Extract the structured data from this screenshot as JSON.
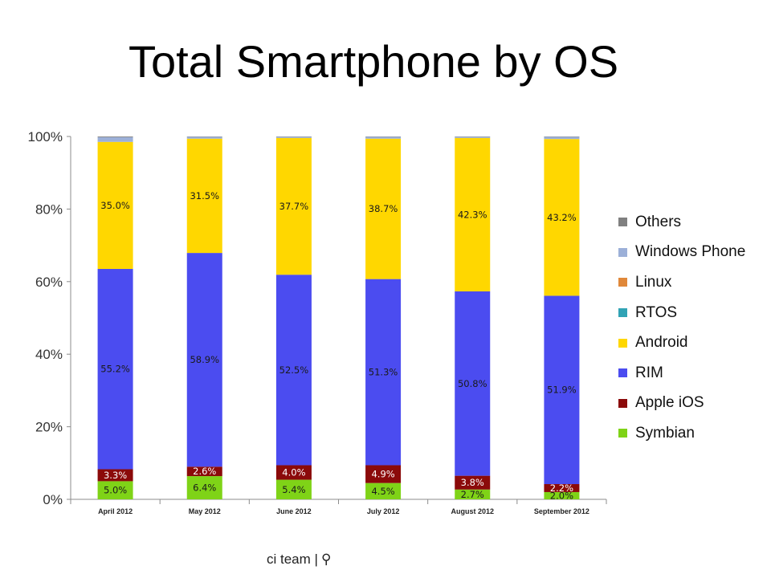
{
  "chart_data": {
    "type": "bar",
    "stacked": true,
    "title": "Total Smartphone by OS",
    "categories": [
      "April 2012",
      "May 2012",
      "June 2012",
      "July 2012",
      "August 2012",
      "September 2012"
    ],
    "ylim": [
      0,
      100
    ],
    "yticks": [
      "0%",
      "20%",
      "40%",
      "60%",
      "80%",
      "100%"
    ],
    "legend_position": "right",
    "series": [
      {
        "name": "Symbian",
        "color": "#7fd317",
        "values": [
          5.0,
          6.4,
          5.4,
          4.5,
          2.7,
          2.0
        ],
        "labels": [
          "5.0%",
          "6.4%",
          "5.4%",
          "4.5%",
          "2.7%",
          "2.0%"
        ],
        "label_color": "#1a1a1a"
      },
      {
        "name": "Apple iOS",
        "color": "#8b0a0a",
        "values": [
          3.3,
          2.6,
          4.0,
          4.9,
          3.8,
          2.2
        ],
        "labels": [
          "3.3%",
          "2.6%",
          "4.0%",
          "4.9%",
          "3.8%",
          "2.2%"
        ],
        "label_color": "#ffffff"
      },
      {
        "name": "RIM",
        "color": "#4b4cf0",
        "values": [
          55.2,
          58.9,
          52.5,
          51.3,
          50.8,
          51.9
        ],
        "labels": [
          "55.2%",
          "58.9%",
          "52.5%",
          "51.3%",
          "50.8%",
          "51.9%"
        ],
        "label_color": "#1a1a1a"
      },
      {
        "name": "Android",
        "color": "#ffd700",
        "values": [
          35.0,
          31.5,
          37.7,
          38.7,
          42.3,
          43.2
        ],
        "labels": [
          "35.0%",
          "31.5%",
          "37.7%",
          "38.7%",
          "42.3%",
          "43.2%"
        ],
        "label_color": "#1a1a1a"
      },
      {
        "name": "RTOS",
        "color": "#31a3b5",
        "values": [
          0.0,
          0.0,
          0.0,
          0.0,
          0.0,
          0.0
        ]
      },
      {
        "name": "Linux",
        "color": "#e0883a",
        "values": [
          0.0,
          0.0,
          0.0,
          0.0,
          0.0,
          0.0
        ]
      },
      {
        "name": "Windows Phone",
        "color": "#9cb0d8",
        "values": [
          1.3,
          0.5,
          0.3,
          0.5,
          0.3,
          0.6
        ]
      },
      {
        "name": "Others",
        "color": "#808080",
        "values": [
          0.2,
          0.1,
          0.1,
          0.1,
          0.1,
          0.1
        ]
      }
    ],
    "legend_order": [
      "Others",
      "Windows Phone",
      "Linux",
      "RTOS",
      "Android",
      "RIM",
      "Apple iOS",
      "Symbian"
    ]
  },
  "footer": {
    "text": "ci team |",
    "icon": "pin-icon"
  }
}
